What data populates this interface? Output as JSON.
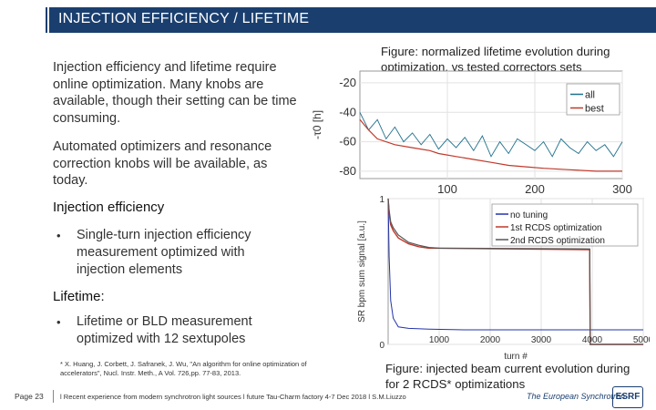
{
  "slide": {
    "title": "INJECTION EFFICIENCY / LIFETIME",
    "intro1": "Injection efficiency and lifetime require online optimization. Many knobs are available, though their setting can be time consuming.",
    "intro2": "Automated optimizers and resonance correction knobs will be available, as today.",
    "section1_heading": "Injection efficiency",
    "section1_bullet": "Single-turn injection efficiency measurement optimized with injection elements",
    "section2_heading": "Lifetime:",
    "section2_bullet": "Lifetime or BLD measurement optimized with 12 sextupoles",
    "bullet_glyph": "•",
    "reference": "* X. Huang, J. Corbett, J. Safranek, J. Wu, \"An algorithm for online optimization of accelerators\", Nucl. Instr. Meth., A Vol. 726,pp. 77-83, 2013.",
    "page_label": "Page 23",
    "footer": "l Recent experience from modern synchrotron light sources l future Tau-Charm factory 4-7 Dec 2018 l S.M.Liuzzo",
    "logo_text": "The European Synchrotron",
    "logo_mark": "ESRF"
  },
  "figures": {
    "top_caption": "Figure: normalized lifetime evolution during optimization, vs tested correctors sets",
    "bottom_caption": "Figure: injected beam current evolution during for 2 RCDS* optimizations"
  },
  "chart_data": [
    {
      "type": "line",
      "ylabel": "-τ0 [h]",
      "xlabel": "",
      "xlim": [
        0,
        300
      ],
      "ylim": [
        -85,
        -12
      ],
      "xticks": [
        100,
        200,
        300
      ],
      "yticks": [
        -20,
        -40,
        -60,
        -80
      ],
      "grid": true,
      "legend": "top-right",
      "series": [
        {
          "name": "all",
          "color": "#1f6f8b",
          "x": [
            0,
            10,
            20,
            30,
            40,
            50,
            60,
            70,
            80,
            90,
            100,
            110,
            120,
            130,
            140,
            150,
            160,
            170,
            180,
            190,
            200,
            210,
            220,
            230,
            240,
            250,
            260,
            270,
            280,
            290,
            300
          ],
          "y": [
            -40,
            -52,
            -45,
            -58,
            -50,
            -60,
            -54,
            -62,
            -55,
            -65,
            -58,
            -64,
            -57,
            -66,
            -56,
            -70,
            -60,
            -68,
            -58,
            -62,
            -66,
            -60,
            -70,
            -58,
            -64,
            -68,
            -60,
            -66,
            -62,
            -70,
            -60
          ]
        },
        {
          "name": "best",
          "color": "#c0392b",
          "x": [
            0,
            10,
            20,
            40,
            60,
            80,
            90,
            110,
            130,
            150,
            170,
            190,
            210,
            240,
            270,
            300
          ],
          "y": [
            -45,
            -52,
            -58,
            -62,
            -64,
            -66,
            -68,
            -70,
            -72,
            -74,
            -76,
            -77,
            -78,
            -79,
            -80,
            -80
          ]
        }
      ]
    },
    {
      "type": "line",
      "ylabel": "SR bpm sum signal [a.u.]",
      "xlabel": "turn #",
      "xlim": [
        0,
        5000
      ],
      "ylim": [
        0,
        1
      ],
      "xticks": [
        1000,
        2000,
        3000,
        4000,
        5000
      ],
      "yticks": [
        0,
        1
      ],
      "grid": true,
      "legend": "top-right",
      "series": [
        {
          "name": "no tuning",
          "color": "#2233aa",
          "x": [
            0,
            20,
            50,
            100,
            200,
            400,
            800,
            1500,
            3000,
            5000
          ],
          "y": [
            1.0,
            0.6,
            0.3,
            0.18,
            0.12,
            0.11,
            0.105,
            0.1,
            0.1,
            0.1
          ]
        },
        {
          "name": "1st RCDS optimization",
          "color": "#c0392b",
          "x": [
            0,
            20,
            50,
            100,
            200,
            400,
            600,
            800,
            1000,
            3950,
            3960,
            5000
          ],
          "y": [
            1.0,
            0.9,
            0.82,
            0.78,
            0.73,
            0.69,
            0.67,
            0.66,
            0.66,
            0.65,
            0.0,
            0.0
          ]
        },
        {
          "name": "2nd RCDS optimization",
          "color": "#555555",
          "x": [
            0,
            20,
            50,
            100,
            200,
            400,
            600,
            800,
            1000,
            3950,
            3960,
            5000
          ],
          "y": [
            1.0,
            0.92,
            0.84,
            0.8,
            0.75,
            0.7,
            0.68,
            0.665,
            0.66,
            0.655,
            0.0,
            0.0
          ]
        }
      ]
    }
  ]
}
